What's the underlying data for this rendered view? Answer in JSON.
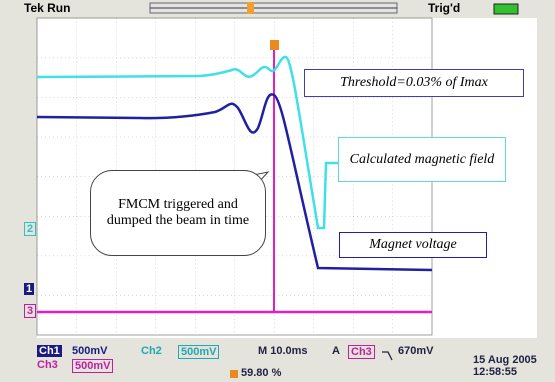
{
  "header": {
    "status": "Tek Run",
    "trigger": "Trig'd"
  },
  "annotations": {
    "threshold": "Threshold=0.03% of Imax",
    "field": "Calculated magnetic field",
    "voltage": "Magnet voltage",
    "callout": "FMCM triggered and dumped the beam in time"
  },
  "channel_markers": [
    "2",
    "1",
    "3"
  ],
  "status_bar": {
    "ch1": "Ch1",
    "ch1_scale": "500mV",
    "ch2": "Ch2",
    "ch2_scale": "500mV",
    "timebase": "M 10.0ms",
    "trigger_mode": "A",
    "trigger_source": "Ch3",
    "trigger_level": "670mV",
    "ch3": "Ch3",
    "ch3_scale": "500mV",
    "trigger_position": "59.80 %",
    "date": "15 Aug 2005",
    "time": "12:58:55"
  }
}
